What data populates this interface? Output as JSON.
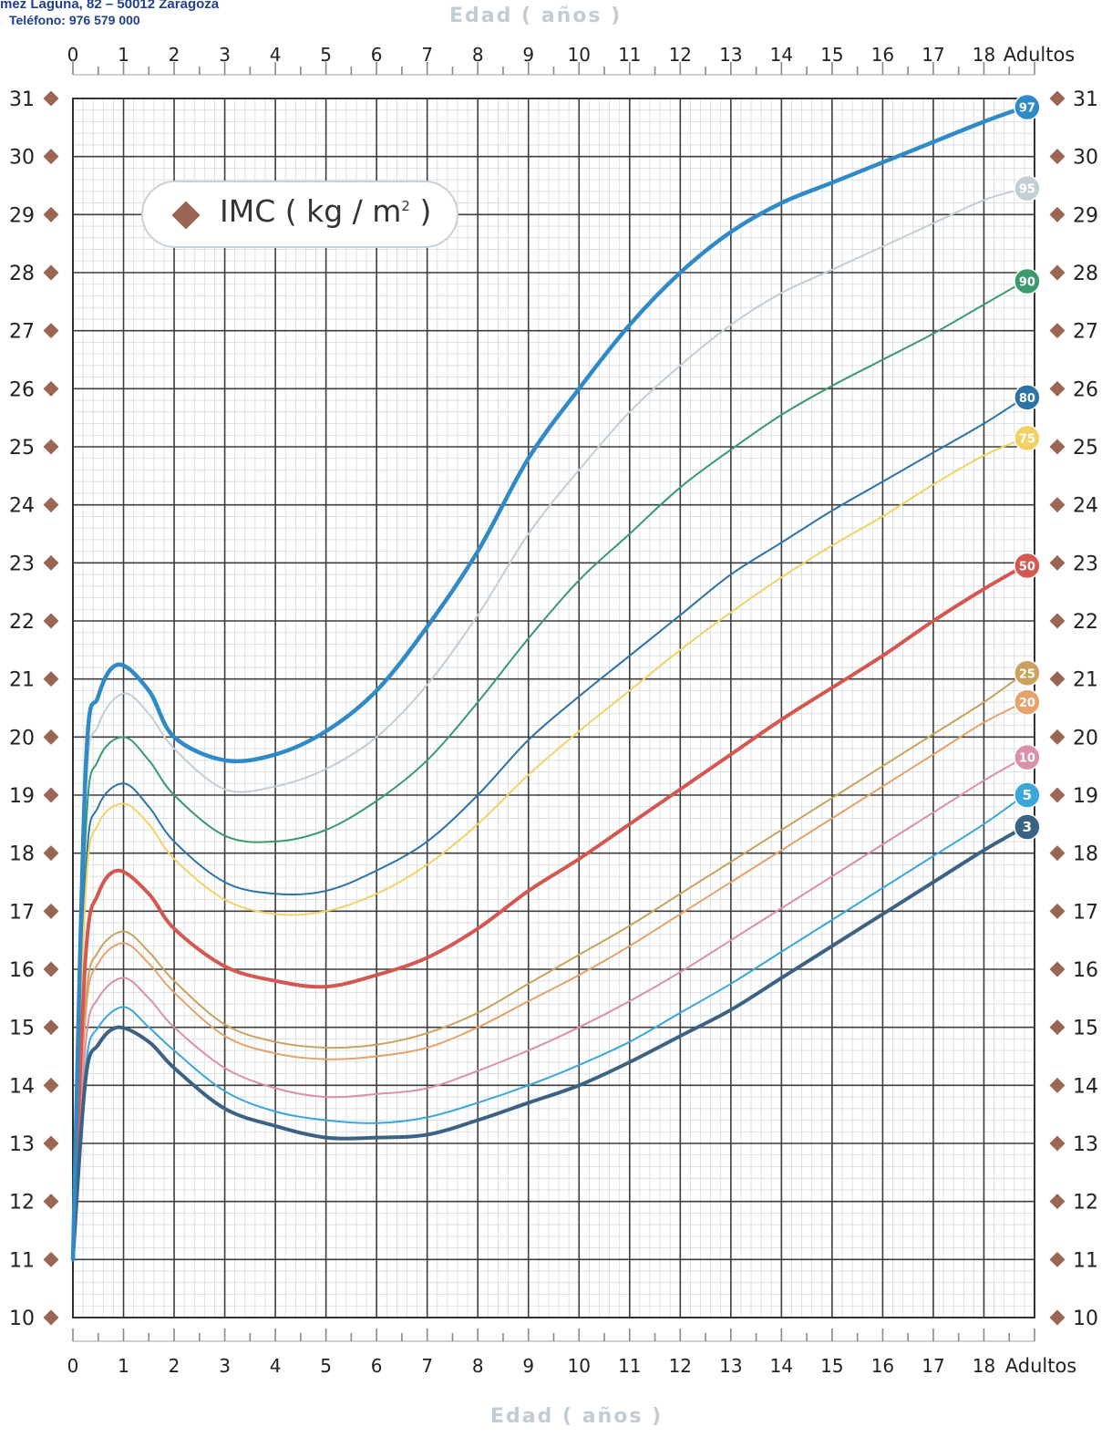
{
  "header": {
    "address": "mez Laguna, 82 – 50012 Zaragoza",
    "phone": "Teléfono: 976 579 000"
  },
  "chart_data": {
    "type": "line",
    "xlabel": "Edad ( años )",
    "ylabel": "IMC ( kg / m² )",
    "legend_label": "IMC ( kg / m",
    "legend_sup": "2",
    "x_ticks": [
      "0",
      "1",
      "2",
      "3",
      "4",
      "5",
      "6",
      "7",
      "8",
      "9",
      "10",
      "11",
      "12",
      "13",
      "14",
      "15",
      "16",
      "17",
      "18",
      "Adultos"
    ],
    "y_ticks": [
      "10",
      "11",
      "12",
      "13",
      "14",
      "15",
      "16",
      "17",
      "18",
      "19",
      "20",
      "21",
      "22",
      "23",
      "24",
      "25",
      "26",
      "27",
      "28",
      "29",
      "30",
      "31"
    ],
    "xlim": [
      0,
      19
    ],
    "ylim": [
      10,
      31
    ],
    "grid": true,
    "series": [
      {
        "name": "97",
        "color": "#2f8ac7",
        "width": 4.5,
        "points": [
          [
            0,
            11
          ],
          [
            0.25,
            19.4
          ],
          [
            0.5,
            20.7
          ],
          [
            0.9,
            21.25
          ],
          [
            1.5,
            20.8
          ],
          [
            2,
            20
          ],
          [
            3,
            19.6
          ],
          [
            4,
            19.7
          ],
          [
            5,
            20.1
          ],
          [
            6,
            20.8
          ],
          [
            7,
            21.9
          ],
          [
            8,
            23.2
          ],
          [
            9,
            24.8
          ],
          [
            10,
            26
          ],
          [
            11,
            27.1
          ],
          [
            12,
            28
          ],
          [
            13,
            28.7
          ],
          [
            14,
            29.2
          ],
          [
            15,
            29.55
          ],
          [
            16,
            29.9
          ],
          [
            17,
            30.25
          ],
          [
            18,
            30.6
          ],
          [
            18.8,
            30.85
          ]
        ]
      },
      {
        "name": "95",
        "color": "#c3cdd4",
        "width": 2,
        "points": [
          [
            0,
            11
          ],
          [
            0.25,
            18.9
          ],
          [
            0.5,
            20.2
          ],
          [
            1,
            20.75
          ],
          [
            1.5,
            20.4
          ],
          [
            2,
            19.8
          ],
          [
            3,
            19.1
          ],
          [
            4,
            19.15
          ],
          [
            5,
            19.45
          ],
          [
            6,
            20
          ],
          [
            7,
            20.9
          ],
          [
            8,
            22.1
          ],
          [
            9,
            23.5
          ],
          [
            10,
            24.6
          ],
          [
            11,
            25.6
          ],
          [
            12,
            26.4
          ],
          [
            13,
            27.1
          ],
          [
            14,
            27.65
          ],
          [
            15,
            28.05
          ],
          [
            16,
            28.45
          ],
          [
            17,
            28.85
          ],
          [
            18,
            29.25
          ],
          [
            18.8,
            29.45
          ]
        ]
      },
      {
        "name": "90",
        "color": "#3a9a6b",
        "width": 2,
        "points": [
          [
            0,
            11
          ],
          [
            0.25,
            18.3
          ],
          [
            0.5,
            19.6
          ],
          [
            1,
            20
          ],
          [
            1.5,
            19.6
          ],
          [
            2,
            19
          ],
          [
            3,
            18.3
          ],
          [
            4,
            18.2
          ],
          [
            5,
            18.4
          ],
          [
            6,
            18.9
          ],
          [
            7,
            19.6
          ],
          [
            8,
            20.6
          ],
          [
            9,
            21.7
          ],
          [
            10,
            22.7
          ],
          [
            11,
            23.5
          ],
          [
            12,
            24.3
          ],
          [
            13,
            24.95
          ],
          [
            14,
            25.55
          ],
          [
            15,
            26.05
          ],
          [
            16,
            26.5
          ],
          [
            17,
            26.95
          ],
          [
            18,
            27.45
          ],
          [
            18.8,
            27.85
          ]
        ]
      },
      {
        "name": "80",
        "color": "#2e73a5",
        "width": 2,
        "points": [
          [
            0,
            11
          ],
          [
            0.25,
            17.6
          ],
          [
            0.5,
            18.8
          ],
          [
            1,
            19.2
          ],
          [
            1.5,
            18.8
          ],
          [
            2,
            18.2
          ],
          [
            3,
            17.5
          ],
          [
            4,
            17.3
          ],
          [
            5,
            17.35
          ],
          [
            6,
            17.7
          ],
          [
            7,
            18.2
          ],
          [
            8,
            19
          ],
          [
            9,
            19.95
          ],
          [
            10,
            20.7
          ],
          [
            11,
            21.4
          ],
          [
            12,
            22.1
          ],
          [
            13,
            22.8
          ],
          [
            14,
            23.35
          ],
          [
            15,
            23.9
          ],
          [
            16,
            24.4
          ],
          [
            17,
            24.9
          ],
          [
            18,
            25.4
          ],
          [
            18.8,
            25.85
          ]
        ]
      },
      {
        "name": "75",
        "color": "#f3d165",
        "width": 2,
        "points": [
          [
            0,
            11
          ],
          [
            0.25,
            17.3
          ],
          [
            0.5,
            18.5
          ],
          [
            1,
            18.85
          ],
          [
            1.5,
            18.5
          ],
          [
            2,
            17.9
          ],
          [
            3,
            17.2
          ],
          [
            4,
            16.95
          ],
          [
            5,
            17
          ],
          [
            6,
            17.3
          ],
          [
            7,
            17.8
          ],
          [
            8,
            18.5
          ],
          [
            9,
            19.35
          ],
          [
            10,
            20.1
          ],
          [
            11,
            20.8
          ],
          [
            12,
            21.5
          ],
          [
            13,
            22.15
          ],
          [
            14,
            22.75
          ],
          [
            15,
            23.3
          ],
          [
            16,
            23.8
          ],
          [
            17,
            24.35
          ],
          [
            18,
            24.85
          ],
          [
            18.8,
            25.15
          ]
        ]
      },
      {
        "name": "50",
        "color": "#d45750",
        "width": 4,
        "points": [
          [
            0,
            11
          ],
          [
            0.25,
            16.2
          ],
          [
            0.5,
            17.3
          ],
          [
            0.9,
            17.7
          ],
          [
            1.5,
            17.3
          ],
          [
            2,
            16.7
          ],
          [
            3,
            16.05
          ],
          [
            4,
            15.8
          ],
          [
            5,
            15.7
          ],
          [
            6,
            15.9
          ],
          [
            7,
            16.2
          ],
          [
            8,
            16.7
          ],
          [
            9,
            17.35
          ],
          [
            10,
            17.9
          ],
          [
            11,
            18.5
          ],
          [
            12,
            19.1
          ],
          [
            13,
            19.7
          ],
          [
            14,
            20.3
          ],
          [
            15,
            20.85
          ],
          [
            16,
            21.4
          ],
          [
            17,
            22
          ],
          [
            18,
            22.55
          ],
          [
            18.8,
            22.95
          ]
        ]
      },
      {
        "name": "25",
        "color": "#c9a35e",
        "width": 2,
        "points": [
          [
            0,
            11
          ],
          [
            0.25,
            15.4
          ],
          [
            0.5,
            16.3
          ],
          [
            1,
            16.65
          ],
          [
            1.5,
            16.3
          ],
          [
            2,
            15.8
          ],
          [
            3,
            15.05
          ],
          [
            4,
            14.75
          ],
          [
            5,
            14.65
          ],
          [
            6,
            14.7
          ],
          [
            7,
            14.9
          ],
          [
            8,
            15.25
          ],
          [
            9,
            15.75
          ],
          [
            10,
            16.25
          ],
          [
            11,
            16.75
          ],
          [
            12,
            17.3
          ],
          [
            13,
            17.85
          ],
          [
            14,
            18.4
          ],
          [
            15,
            18.95
          ],
          [
            16,
            19.5
          ],
          [
            17,
            20.05
          ],
          [
            18,
            20.6
          ],
          [
            18.8,
            21.1
          ]
        ]
      },
      {
        "name": "20",
        "color": "#e5a26a",
        "width": 2,
        "points": [
          [
            0,
            11
          ],
          [
            0.25,
            15.2
          ],
          [
            0.5,
            16.1
          ],
          [
            1,
            16.45
          ],
          [
            1.5,
            16.1
          ],
          [
            2,
            15.6
          ],
          [
            3,
            14.85
          ],
          [
            4,
            14.55
          ],
          [
            5,
            14.45
          ],
          [
            6,
            14.5
          ],
          [
            7,
            14.65
          ],
          [
            8,
            15
          ],
          [
            9,
            15.45
          ],
          [
            10,
            15.9
          ],
          [
            11,
            16.4
          ],
          [
            12,
            16.95
          ],
          [
            13,
            17.5
          ],
          [
            14,
            18.05
          ],
          [
            15,
            18.6
          ],
          [
            16,
            19.15
          ],
          [
            17,
            19.7
          ],
          [
            18,
            20.25
          ],
          [
            18.8,
            20.6
          ]
        ]
      },
      {
        "name": "10",
        "color": "#dc8fa8",
        "width": 2,
        "points": [
          [
            0,
            11
          ],
          [
            0.25,
            14.7
          ],
          [
            0.5,
            15.5
          ],
          [
            1,
            15.85
          ],
          [
            1.5,
            15.5
          ],
          [
            2,
            15
          ],
          [
            3,
            14.3
          ],
          [
            4,
            13.95
          ],
          [
            5,
            13.8
          ],
          [
            6,
            13.85
          ],
          [
            7,
            13.95
          ],
          [
            8,
            14.25
          ],
          [
            9,
            14.6
          ],
          [
            10,
            15
          ],
          [
            11,
            15.45
          ],
          [
            12,
            15.95
          ],
          [
            13,
            16.5
          ],
          [
            14,
            17.05
          ],
          [
            15,
            17.6
          ],
          [
            16,
            18.15
          ],
          [
            17,
            18.7
          ],
          [
            18,
            19.25
          ],
          [
            18.8,
            19.65
          ]
        ]
      },
      {
        "name": "5",
        "color": "#3aa7d8",
        "width": 2,
        "points": [
          [
            0,
            11
          ],
          [
            0.25,
            14.3
          ],
          [
            0.5,
            15
          ],
          [
            1,
            15.35
          ],
          [
            1.5,
            15
          ],
          [
            2,
            14.6
          ],
          [
            3,
            13.9
          ],
          [
            4,
            13.55
          ],
          [
            5,
            13.4
          ],
          [
            6,
            13.35
          ],
          [
            7,
            13.45
          ],
          [
            8,
            13.7
          ],
          [
            9,
            14
          ],
          [
            10,
            14.35
          ],
          [
            11,
            14.75
          ],
          [
            12,
            15.25
          ],
          [
            13,
            15.75
          ],
          [
            14,
            16.3
          ],
          [
            15,
            16.85
          ],
          [
            16,
            17.4
          ],
          [
            17,
            17.95
          ],
          [
            18,
            18.5
          ],
          [
            18.8,
            19
          ]
        ]
      },
      {
        "name": "3",
        "color": "#3c6283",
        "width": 4,
        "points": [
          [
            0,
            11
          ],
          [
            0.25,
            14.1
          ],
          [
            0.5,
            14.7
          ],
          [
            0.9,
            15
          ],
          [
            1.5,
            14.75
          ],
          [
            2,
            14.3
          ],
          [
            3,
            13.6
          ],
          [
            4,
            13.3
          ],
          [
            5,
            13.1
          ],
          [
            6,
            13.1
          ],
          [
            7,
            13.15
          ],
          [
            8,
            13.4
          ],
          [
            9,
            13.7
          ],
          [
            10,
            14
          ],
          [
            11,
            14.4
          ],
          [
            12,
            14.85
          ],
          [
            13,
            15.3
          ],
          [
            14,
            15.85
          ],
          [
            15,
            16.4
          ],
          [
            16,
            16.95
          ],
          [
            17,
            17.5
          ],
          [
            18,
            18.05
          ],
          [
            18.8,
            18.45
          ]
        ]
      }
    ]
  }
}
